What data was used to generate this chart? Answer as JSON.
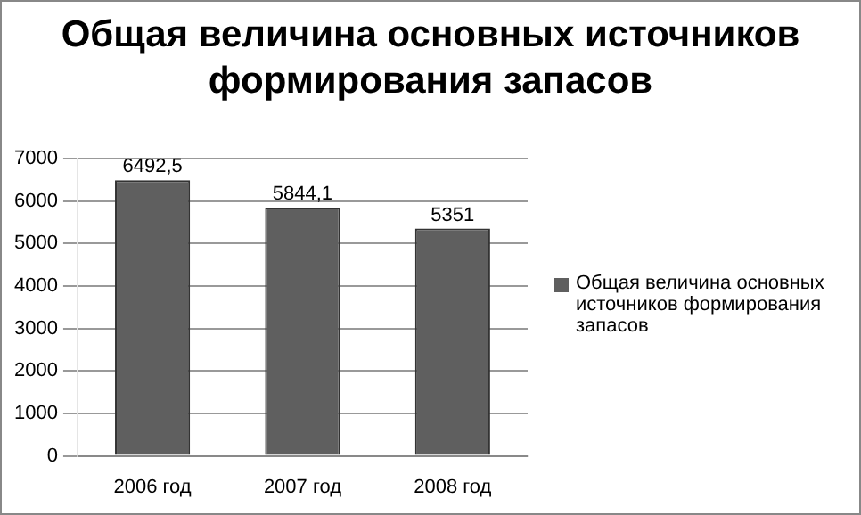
{
  "chart_data": {
    "type": "bar",
    "title": "Общая величина основных источников формирования запасов",
    "categories": [
      "2006 год",
      "2007 год",
      "2008 год"
    ],
    "series": [
      {
        "name": "Общая величина основных источников формирования запасов",
        "color": "#5f5f5f",
        "values": [
          6492.5,
          5844.1,
          5351
        ],
        "value_labels": [
          "6492,5",
          "5844,1",
          "5351"
        ]
      }
    ],
    "ylim": [
      0,
      7000
    ],
    "yticks": [
      0,
      1000,
      2000,
      3000,
      4000,
      5000,
      6000,
      7000
    ],
    "grid": "y",
    "legend": "right"
  }
}
